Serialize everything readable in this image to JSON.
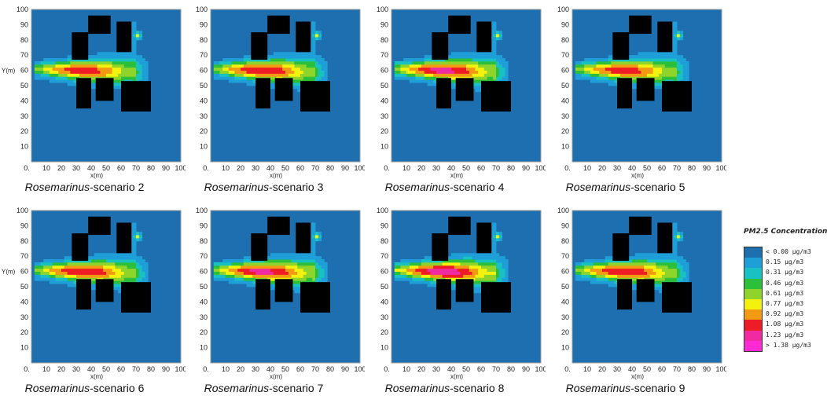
{
  "chart_data": {
    "type": "heatmap",
    "xlabel": "x(m)",
    "ylabel": "Y(m)",
    "xlim": [
      0,
      100
    ],
    "ylim": [
      0,
      100
    ],
    "x_ticks": [
      0,
      10,
      20,
      30,
      40,
      50,
      60,
      70,
      80,
      90,
      100
    ],
    "y_ticks": [
      0,
      10,
      20,
      30,
      40,
      50,
      60,
      70,
      80,
      90,
      100
    ],
    "obstacles_m": [
      {
        "x0": 27,
        "x1": 38,
        "y0": 67,
        "y1": 85
      },
      {
        "x0": 38,
        "x1": 53,
        "y0": 84,
        "y1": 96
      },
      {
        "x0": 57,
        "x1": 67,
        "y0": 72,
        "y1": 92
      },
      {
        "x0": 30,
        "x1": 40,
        "y0": 35,
        "y1": 55
      },
      {
        "x0": 43,
        "x1": 55,
        "y0": 40,
        "y1": 55
      },
      {
        "x0": 60,
        "x1": 80,
        "y0": 33,
        "y1": 53
      }
    ],
    "plume": {
      "source_x": 5,
      "axis_y": 60,
      "length_m": 65,
      "half_width_m": 7
    },
    "panels": [
      {
        "caption_italic": "Rosemarinus",
        "caption_rest": "-scenario 2",
        "peak": 1.0,
        "show_ylabel": true
      },
      {
        "caption_italic": "Rosemarinus",
        "caption_rest": "-scenario 3",
        "peak": 1.05,
        "show_ylabel": false
      },
      {
        "caption_italic": "Rosemarinus",
        "caption_rest": "-scenario 4",
        "peak": 1.1,
        "show_ylabel": false
      },
      {
        "caption_italic": "Rosemarinus",
        "caption_rest": "-scenario 5",
        "peak": 1.0,
        "show_ylabel": false
      },
      {
        "caption_italic": "Rosemarinus",
        "caption_rest": "-scenario 6",
        "peak": 1.05,
        "show_ylabel": true
      },
      {
        "caption_italic": "Rosemarinus",
        "caption_rest": "-scenario 7",
        "peak": 1.1,
        "show_ylabel": false
      },
      {
        "caption_italic": "Rosemarinus",
        "caption_rest": "-scenario 8",
        "peak": 1.15,
        "show_ylabel": false
      },
      {
        "caption_italic": "Rosemarinus",
        "caption_rest": "-scenario 9",
        "peak": 1.05,
        "show_ylabel": false
      }
    ],
    "legend": {
      "title": "PM2.5 Concentration",
      "items": [
        {
          "label": "< 0.00 µg/m3",
          "color": "#1d6fb0"
        },
        {
          "label": "0.15  µg/m3",
          "color": "#1f9fd8"
        },
        {
          "label": "0.31  µg/m3",
          "color": "#19c2c2"
        },
        {
          "label": "0.46  µg/m3",
          "color": "#2bbf3a"
        },
        {
          "label": "0.61  µg/m3",
          "color": "#8fd42a"
        },
        {
          "label": "0.77  µg/m3",
          "color": "#f2f20e"
        },
        {
          "label": "0.92  µg/m3",
          "color": "#f29a12"
        },
        {
          "label": "1.08  µg/m3",
          "color": "#ee1c24"
        },
        {
          "label": "1.23  µg/m3",
          "color": "#f02aa0"
        },
        {
          "label": "> 1.38 µg/m3",
          "color": "#ff2ad4"
        }
      ]
    }
  }
}
